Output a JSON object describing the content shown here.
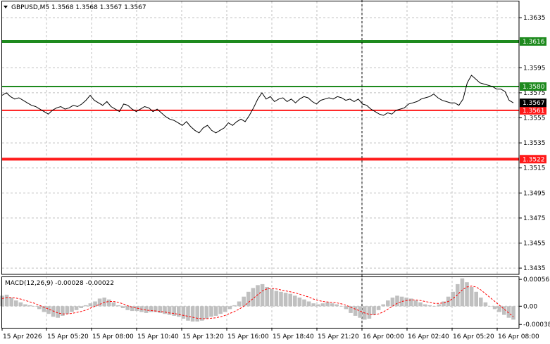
{
  "header": {
    "symbol_line": "GBPUSD,M5  1.3568 1.3568 1.3567 1.3567",
    "macd_line": "MACD(12,26,9) -0.00028 -0.00022"
  },
  "colors": {
    "price_line": "#000000",
    "grid": "#c0c0c0",
    "resistance": "#1e8a1e",
    "support": "#ff1a1a",
    "macd_hist": "#c0c0c0",
    "macd_signal": "#ff0000",
    "current_price_box": "#000000"
  },
  "chart_data": [
    {
      "type": "line",
      "title": "",
      "instrument": "GBPUSD",
      "timeframe": "M5",
      "ohlc_last": {
        "open": 1.3568,
        "high": 1.3568,
        "low": 1.3567,
        "close": 1.3567
      },
      "ylim": [
        1.343,
        1.3648
      ],
      "y_ticks": [
        "1.3635",
        "1.3595",
        "1.3575",
        "1.3555",
        "1.3535",
        "1.3515",
        "1.3495",
        "1.3475",
        "1.3455",
        "1.3435"
      ],
      "y_tick_values": [
        1.3635,
        1.3595,
        1.3575,
        1.3555,
        1.3535,
        1.3515,
        1.3495,
        1.3475,
        1.3455,
        1.3435
      ],
      "x_ticks": [
        "15 Apr 2026",
        "15 Apr 05:20",
        "15 Apr 08:00",
        "15 Apr 10:40",
        "15 Apr 13:20",
        "15 Apr 16:00",
        "15 Apr 18:40",
        "15 Apr 21:20",
        "16 Apr 00:00",
        "16 Apr 02:40",
        "16 Apr 05:20",
        "16 Apr 08:00"
      ],
      "period_separator": "16 Apr 00:00",
      "levels": [
        {
          "value": 1.3616,
          "label": "1.3616",
          "color": "#1e8a1e",
          "kind": "resistance"
        },
        {
          "value": 1.358,
          "label": "1.3580",
          "color": "#1e8a1e",
          "kind": "resistance"
        },
        {
          "value": 1.3561,
          "label": "1.3561",
          "color": "#ff1a1a",
          "kind": "support"
        },
        {
          "value": 1.3522,
          "label": "1.3522",
          "color": "#ff1a1a",
          "kind": "support"
        }
      ],
      "current_price": {
        "value": 1.3567,
        "label": "1.3567"
      },
      "series": [
        {
          "values": [
            1.3573,
            1.3575,
            1.3572,
            1.357,
            1.3571,
            1.3569,
            1.3567,
            1.3565,
            1.3564,
            1.3562,
            1.356,
            1.3558,
            1.3561,
            1.3563,
            1.3564,
            1.3562,
            1.3563,
            1.3565,
            1.3564,
            1.3566,
            1.3569,
            1.3573,
            1.3569,
            1.3567,
            1.3565,
            1.3568,
            1.3564,
            1.3562,
            1.356,
            1.3566,
            1.3565,
            1.3562,
            1.356,
            1.3562,
            1.3564,
            1.3563,
            1.356,
            1.3562,
            1.3559,
            1.3556,
            1.3554,
            1.3553,
            1.3551,
            1.3549,
            1.3552,
            1.3548,
            1.3545,
            1.3543,
            1.3547,
            1.3549,
            1.3545,
            1.3543,
            1.3545,
            1.3547,
            1.3551,
            1.3549,
            1.3552,
            1.3554,
            1.3552,
            1.3557,
            1.3563,
            1.357,
            1.3575,
            1.357,
            1.3572,
            1.3568,
            1.357,
            1.3571,
            1.3568,
            1.357,
            1.3567,
            1.357,
            1.3572,
            1.3571,
            1.3568,
            1.3566,
            1.3569,
            1.357,
            1.3571,
            1.357,
            1.3572,
            1.3571,
            1.3569,
            1.357,
            1.3568,
            1.357,
            1.3566,
            1.3565,
            1.3562,
            1.356,
            1.3558,
            1.3557,
            1.3559,
            1.3558,
            1.3561,
            1.3562,
            1.3563,
            1.3566,
            1.3567,
            1.3568,
            1.357,
            1.3571,
            1.3572,
            1.3574,
            1.3571,
            1.3569,
            1.3568,
            1.3567,
            1.3567,
            1.3565,
            1.357,
            1.3583,
            1.3589,
            1.3586,
            1.3583,
            1.3582,
            1.3581,
            1.358,
            1.3578,
            1.3578,
            1.3576,
            1.3569,
            1.3567
          ]
        }
      ]
    },
    {
      "type": "bar",
      "title": "",
      "indicator": "MACD(12,26,9)",
      "main_value": -0.00028,
      "signal_value": -0.00022,
      "ylim": [
        -0.00045,
        0.00062
      ],
      "y_ticks": [
        "0.00056",
        "0.00",
        "-0.00038"
      ],
      "y_tick_values": [
        0.00056,
        0.0,
        -0.00038
      ],
      "series": [
        {
          "type": "histogram",
          "values": [
            0.00022,
            0.00024,
            0.00018,
            0.00012,
            8e-05,
            4e-05,
            2e-05,
            0.0,
            -6e-05,
            -0.00012,
            -0.00016,
            -0.00022,
            -0.00024,
            -0.0002,
            -0.00016,
            -0.00012,
            -8e-05,
            -4e-05,
            2e-05,
            6e-05,
            0.0001,
            0.00016,
            0.00018,
            0.00014,
            8e-05,
            2e-05,
            -4e-05,
            -8e-05,
            -0.0001,
            -0.0001,
            -0.00012,
            -0.00014,
            -0.00012,
            -0.00012,
            -0.00014,
            -0.00016,
            -0.00018,
            -0.0002,
            -0.00022,
            -0.00026,
            -0.0003,
            -0.00032,
            -0.00032,
            -0.0003,
            -0.00026,
            -0.00022,
            -0.0002,
            -0.00016,
            -0.00012,
            -6e-05,
            2e-05,
            0.0001,
            0.0002,
            0.0003,
            0.00038,
            0.00044,
            0.00046,
            0.0004,
            0.00036,
            0.00032,
            0.0003,
            0.00028,
            0.00026,
            0.00022,
            0.00018,
            0.00014,
            0.0001,
            6e-05,
            4e-05,
            6e-05,
            8e-05,
            6e-05,
            4e-05,
            0.0,
            -6e-05,
            -0.00014,
            -0.0002,
            -0.00024,
            -0.00028,
            -0.00026,
            -0.00018,
            -8e-05,
            4e-05,
            0.00012,
            0.00018,
            0.00022,
            0.0002,
            0.00018,
            0.00016,
            0.00012,
            8e-05,
            4e-05,
            2e-05,
            0.0,
            4e-05,
            0.0001,
            0.0002,
            0.0003,
            0.00046,
            0.00058,
            0.0005,
            0.0004,
            0.0003,
            0.00018,
            8e-05,
            0.0,
            -6e-05,
            -0.00012,
            -0.00018,
            -0.00024,
            -0.00028
          ]
        },
        {
          "type": "signal",
          "values": [
            0.00016,
            0.00018,
            0.00018,
            0.00017,
            0.00015,
            0.00012,
            9e-05,
            6e-05,
            2e-05,
            -2e-05,
            -6e-05,
            -0.0001,
            -0.00014,
            -0.00016,
            -0.00016,
            -0.00015,
            -0.00013,
            -0.00011,
            -8e-05,
            -4e-05,
            0.0,
            4e-05,
            8e-05,
            0.0001,
            0.0001,
            8e-05,
            5e-05,
            1e-05,
            -2e-05,
            -4e-05,
            -6e-05,
            -8e-05,
            -9e-05,
            -0.0001,
            -0.00011,
            -0.00012,
            -0.00014,
            -0.00015,
            -0.00017,
            -0.00019,
            -0.00021,
            -0.00023,
            -0.00025,
            -0.00026,
            -0.00026,
            -0.00025,
            -0.00024,
            -0.00022,
            -0.00019,
            -0.00015,
            -0.00011,
            -6e-05,
            0.0,
            8e-05,
            0.00016,
            0.00024,
            0.00032,
            0.00036,
            0.00037,
            0.00036,
            0.00034,
            0.00032,
            0.0003,
            0.00028,
            0.00025,
            0.00022,
            0.00019,
            0.00015,
            0.00012,
            0.0001,
            9e-05,
            8e-05,
            7e-05,
            5e-05,
            2e-05,
            -2e-05,
            -6e-05,
            -0.0001,
            -0.00014,
            -0.00017,
            -0.00018,
            -0.00016,
            -0.00012,
            -6e-05,
            0.0,
            6e-05,
            0.0001,
            0.00012,
            0.00013,
            0.00013,
            0.00012,
            0.0001,
            8e-05,
            6e-05,
            6e-05,
            7e-05,
            0.0001,
            0.00016,
            0.00024,
            0.00034,
            0.0004,
            0.00042,
            0.0004,
            0.00034,
            0.00026,
            0.00018,
            0.0001,
            2e-05,
            -6e-05,
            -0.00014,
            -0.00022
          ]
        }
      ]
    }
  ]
}
